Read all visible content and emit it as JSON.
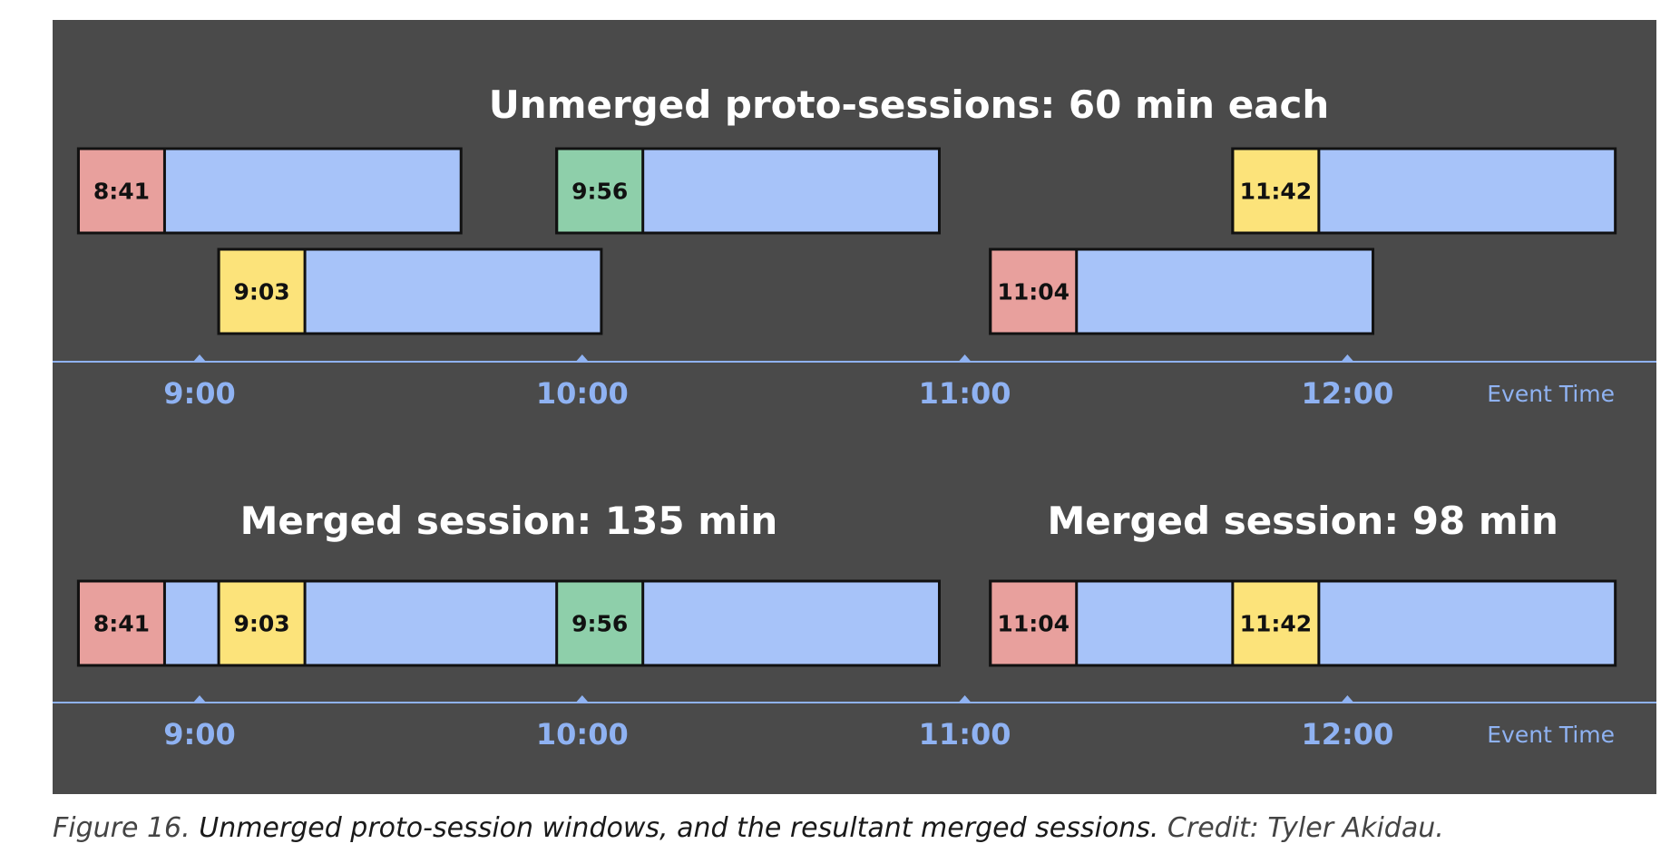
{
  "top_section": {
    "title": "Unmerged proto-sessions: 60 min each",
    "sessions": [
      {
        "start": "8:41",
        "length_min": 60,
        "row": 0,
        "color": "#e8a09d"
      },
      {
        "start": "9:03",
        "length_min": 60,
        "row": 1,
        "color": "#fce37a"
      },
      {
        "start": "9:56",
        "length_min": 60,
        "row": 0,
        "color": "#8ecfaa"
      },
      {
        "start": "11:04",
        "length_min": 60,
        "row": 1,
        "color": "#e8a09d"
      },
      {
        "start": "11:42",
        "length_min": 60,
        "row": 0,
        "color": "#fce37a"
      }
    ]
  },
  "bottom_section": {
    "merged": [
      {
        "title": "Merged session: 135 min",
        "start": "8:41",
        "length_min": 135,
        "events": [
          {
            "start": "8:41",
            "color": "#e8a09d"
          },
          {
            "start": "9:03",
            "color": "#fce37a"
          },
          {
            "start": "9:56",
            "color": "#8ecfaa"
          }
        ]
      },
      {
        "title": "Merged session: 98 min",
        "start": "11:04",
        "length_min": 98,
        "events": [
          {
            "start": "11:04",
            "color": "#e8a09d"
          },
          {
            "start": "11:42",
            "color": "#fce37a"
          }
        ]
      }
    ]
  },
  "axis": {
    "ticks": [
      "9:00",
      "10:00",
      "11:00",
      "12:00"
    ],
    "label": "Event Time"
  },
  "colors": {
    "background": "#4a4a4a",
    "window_fill": "#a7c3f9",
    "axis": "#8fb2f2",
    "title": "#ffffff",
    "outline": "#111111"
  },
  "caption": {
    "prefix": "Figure 16. ",
    "main": "Unmerged proto-session windows, and the resultant merged sessions.",
    "credit": " Credit: Tyler Akidau."
  }
}
